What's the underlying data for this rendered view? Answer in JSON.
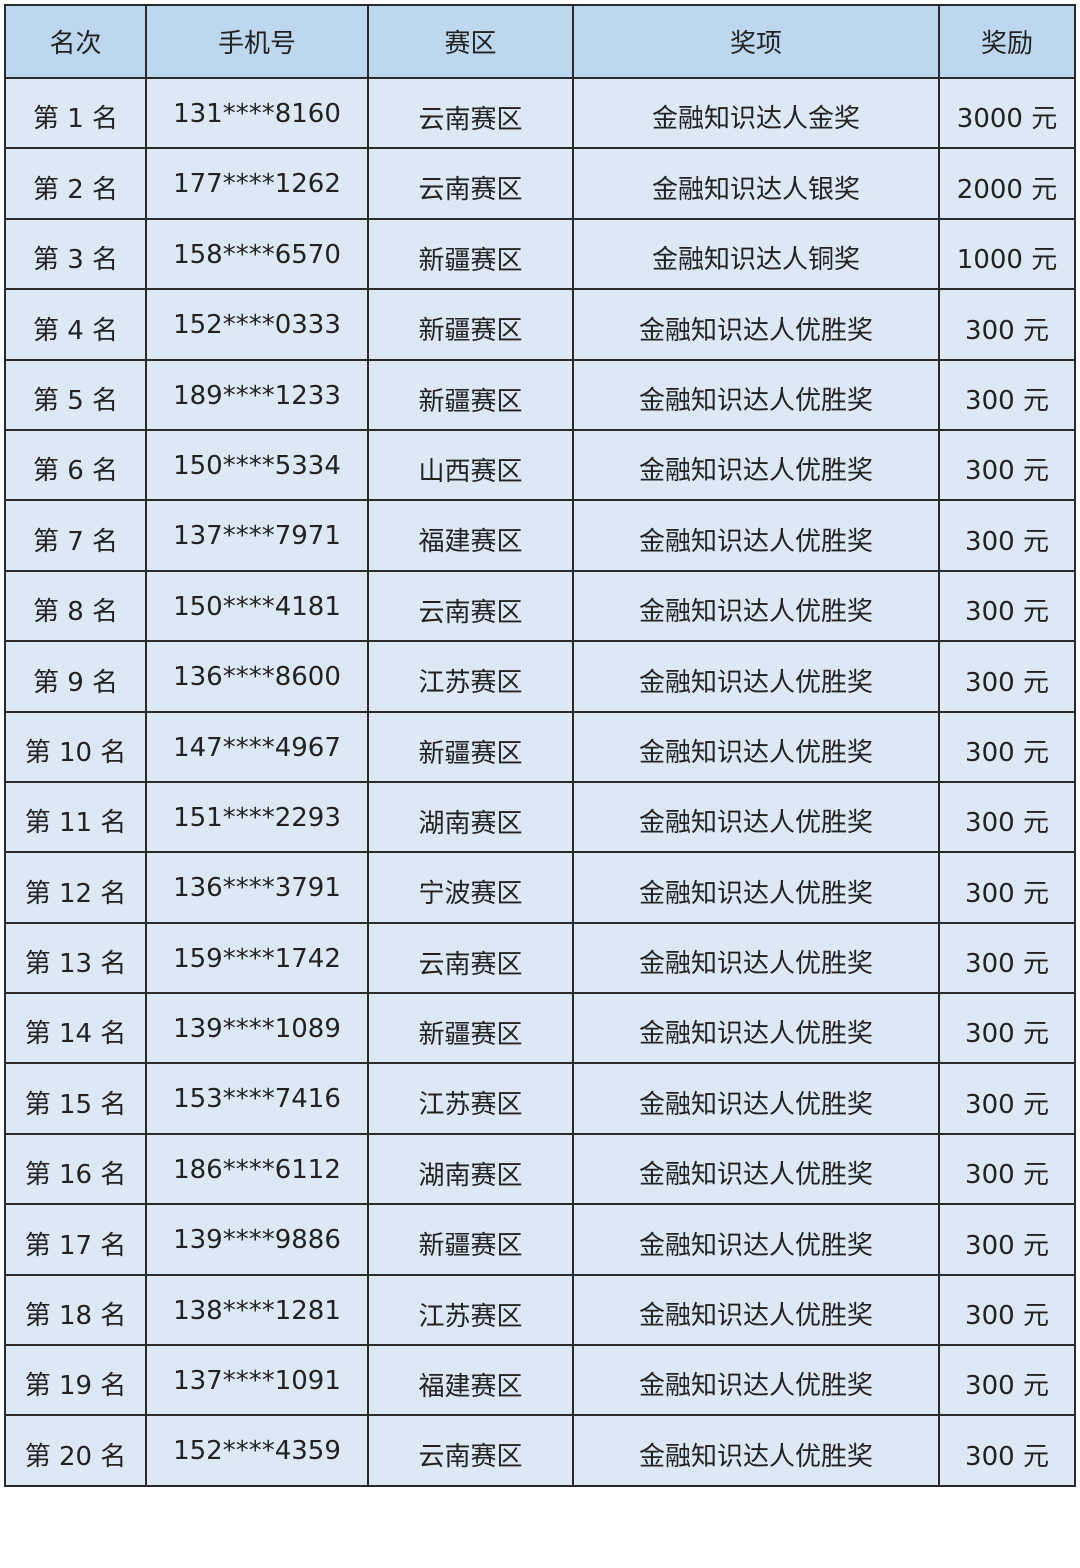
{
  "table": {
    "headers": [
      "名次",
      "手机号",
      "赛区",
      "奖项",
      "奖励"
    ],
    "rows": [
      [
        "第 1 名",
        "131****8160",
        "云南赛区",
        "金融知识达人金奖",
        "3000 元"
      ],
      [
        "第 2 名",
        "177****1262",
        "云南赛区",
        "金融知识达人银奖",
        "2000 元"
      ],
      [
        "第 3 名",
        "158****6570",
        "新疆赛区",
        "金融知识达人铜奖",
        "1000 元"
      ],
      [
        "第 4 名",
        "152****0333",
        "新疆赛区",
        "金融知识达人优胜奖",
        "300 元"
      ],
      [
        "第 5 名",
        "189****1233",
        "新疆赛区",
        "金融知识达人优胜奖",
        "300 元"
      ],
      [
        "第 6 名",
        "150****5334",
        "山西赛区",
        "金融知识达人优胜奖",
        "300 元"
      ],
      [
        "第 7 名",
        "137****7971",
        "福建赛区",
        "金融知识达人优胜奖",
        "300 元"
      ],
      [
        "第 8 名",
        "150****4181",
        "云南赛区",
        "金融知识达人优胜奖",
        "300 元"
      ],
      [
        "第 9 名",
        "136****8600",
        "江苏赛区",
        "金融知识达人优胜奖",
        "300 元"
      ],
      [
        "第 10 名",
        "147****4967",
        "新疆赛区",
        "金融知识达人优胜奖",
        "300 元"
      ],
      [
        "第 11 名",
        "151****2293",
        "湖南赛区",
        "金融知识达人优胜奖",
        "300 元"
      ],
      [
        "第 12 名",
        "136****3791",
        "宁波赛区",
        "金融知识达人优胜奖",
        "300 元"
      ],
      [
        "第 13 名",
        "159****1742",
        "云南赛区",
        "金融知识达人优胜奖",
        "300 元"
      ],
      [
        "第 14 名",
        "139****1089",
        "新疆赛区",
        "金融知识达人优胜奖",
        "300 元"
      ],
      [
        "第 15 名",
        "153****7416",
        "江苏赛区",
        "金融知识达人优胜奖",
        "300 元"
      ],
      [
        "第 16 名",
        "186****6112",
        "湖南赛区",
        "金融知识达人优胜奖",
        "300 元"
      ],
      [
        "第 17 名",
        "139****9886",
        "新疆赛区",
        "金融知识达人优胜奖",
        "300 元"
      ],
      [
        "第 18 名",
        "138****1281",
        "江苏赛区",
        "金融知识达人优胜奖",
        "300 元"
      ],
      [
        "第 19 名",
        "137****1091",
        "福建赛区",
        "金融知识达人优胜奖",
        "300 元"
      ],
      [
        "第 20 名",
        "152****4359",
        "云南赛区",
        "金融知识达人优胜奖",
        "300 元"
      ]
    ]
  },
  "colors": {
    "header_bg": "#bdd7ee",
    "row_bg": "#dde8f5",
    "border": "#2a2a2a"
  }
}
